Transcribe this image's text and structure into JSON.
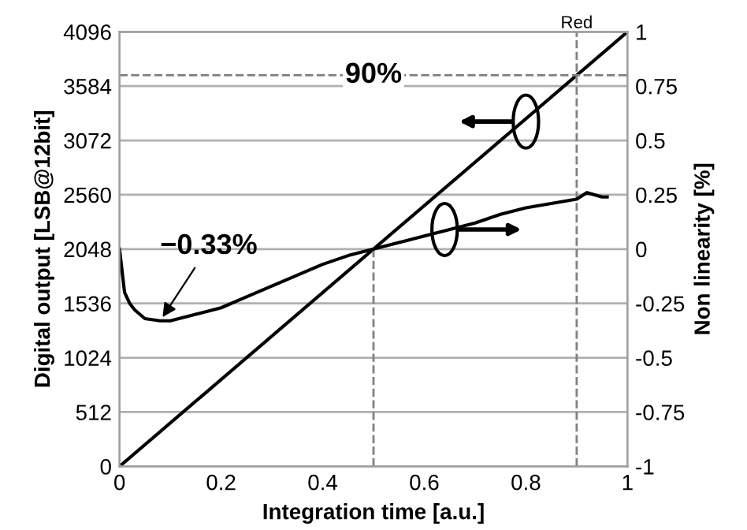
{
  "chart_data": {
    "type": "line",
    "xlabel": "Integration time [a.u.]",
    "ylabel": "Digital output [LSB@12bit]",
    "y2label": "Non linearity [%]",
    "xlim": [
      0,
      1
    ],
    "xticks": [
      0,
      0.2,
      0.4,
      0.6,
      0.8,
      1
    ],
    "ylim": [
      0,
      4096
    ],
    "yticks": [
      0,
      512,
      1024,
      1536,
      2048,
      2560,
      3072,
      3584,
      4096
    ],
    "y2lim": [
      -1,
      1
    ],
    "y2ticks": [
      -1,
      -0.75,
      -0.5,
      -0.25,
      0,
      0.25,
      0.5,
      0.75,
      1
    ],
    "grid": "y",
    "legend": false,
    "line_style": "solid",
    "marker": "none",
    "series": [
      {
        "color": "#000000",
        "x": [
          0,
          1
        ],
        "values": [
          0,
          4096
        ]
      },
      {
        "color": "#000000",
        "axis": "y2",
        "x": [
          0,
          0.005,
          0.01,
          0.02,
          0.03,
          0.05,
          0.08,
          0.1,
          0.15,
          0.2,
          0.25,
          0.3,
          0.35,
          0.4,
          0.45,
          0.5,
          0.55,
          0.6,
          0.65,
          0.7,
          0.75,
          0.8,
          0.85,
          0.9,
          0.92,
          0.95,
          0.96
        ],
        "values": [
          0,
          -0.1,
          -0.2,
          -0.25,
          -0.28,
          -0.32,
          -0.33,
          -0.33,
          -0.3,
          -0.27,
          -0.22,
          -0.17,
          -0.12,
          -0.07,
          -0.03,
          0,
          0.03,
          0.06,
          0.09,
          0.12,
          0.16,
          0.19,
          0.21,
          0.23,
          0.26,
          0.24,
          0.24
        ]
      }
    ],
    "ref_lines": [
      {
        "axis": "y",
        "value": 3686,
        "color": "#808080",
        "line_style": "dashed"
      },
      {
        "axis": "x",
        "value": 0.5,
        "color": "#808080",
        "line_style": "dashed"
      },
      {
        "axis": "x",
        "value": 0.9,
        "label": "Red",
        "color": "#808080",
        "line_style": "dashed"
      }
    ],
    "annotations": [
      "90%",
      {
        "text": "−0.33%",
        "x": 0.08,
        "y": 1372
      }
    ]
  }
}
